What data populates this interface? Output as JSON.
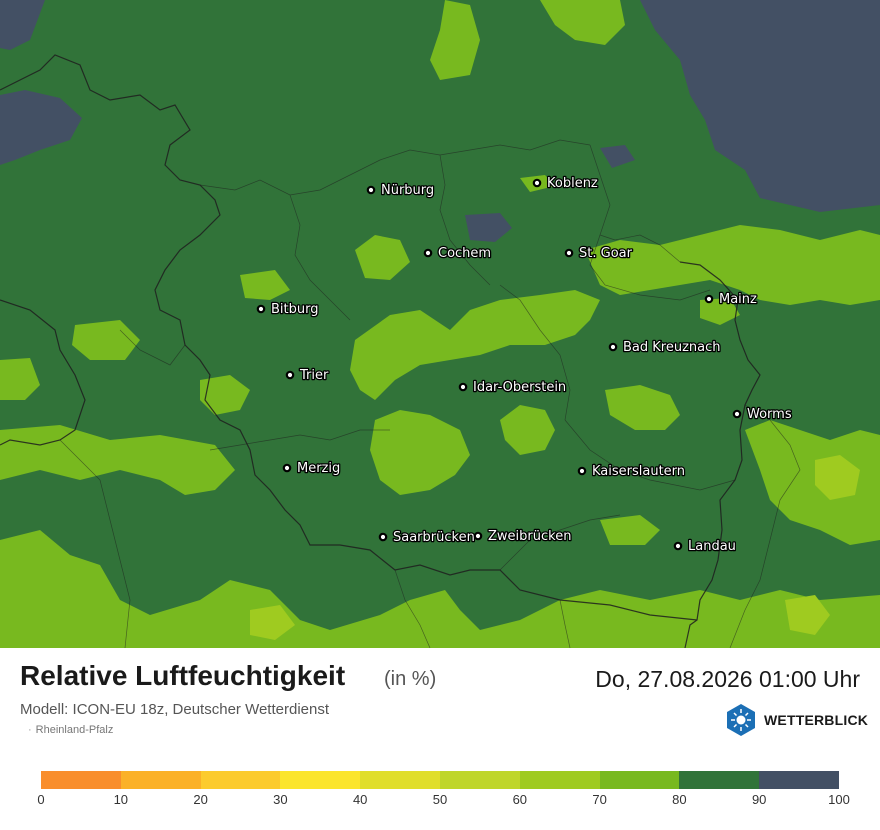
{
  "map": {
    "cities": [
      {
        "name": "Nürburg"
      },
      {
        "name": "Koblenz"
      },
      {
        "name": "Cochem"
      },
      {
        "name": "St. Goar"
      },
      {
        "name": "Mainz"
      },
      {
        "name": "Bitburg"
      },
      {
        "name": "Bad Kreuznach"
      },
      {
        "name": "Trier"
      },
      {
        "name": "Idar-Oberstein"
      },
      {
        "name": "Worms"
      },
      {
        "name": "Merzig"
      },
      {
        "name": "Kaiserslautern"
      },
      {
        "name": "Saarbrücken"
      },
      {
        "name": "Zweibrücken"
      },
      {
        "name": "Landau"
      }
    ],
    "colors": {
      "band_70_80": "#78b91f",
      "band_80_90": "#317339",
      "band_90_100": "#435064",
      "band_60_70": "#9fcb20",
      "border": "#222222"
    }
  },
  "footer": {
    "title": "Relative Luftfeuchtigkeit",
    "unit": "(in %)",
    "datetime": "Do, 27.08.2026 01:00 Uhr",
    "model": "Modell: ICON-EU 18z, Deutscher Wetterdienst",
    "region": "Rheinland-Pfalz",
    "logo_text": "WETTERBLICK"
  },
  "legend": {
    "ticks": [
      "0",
      "10",
      "20",
      "30",
      "40",
      "50",
      "60",
      "70",
      "80",
      "90",
      "100"
    ],
    "colors": [
      "#f98e2c",
      "#fbb128",
      "#fccb2e",
      "#fbe52c",
      "#e0de2b",
      "#bfd62a",
      "#9fcb20",
      "#78b91f",
      "#317339",
      "#435064"
    ]
  }
}
